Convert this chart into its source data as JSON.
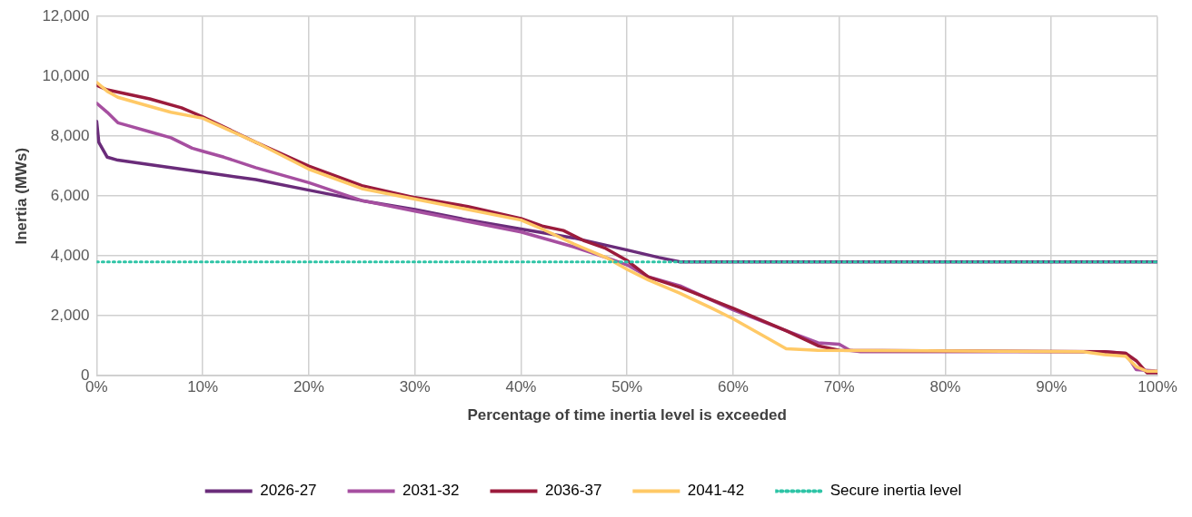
{
  "chart_data": {
    "type": "line",
    "xlabel": "Percentage of time inertia level is exceeded",
    "ylabel": "Inertia (MWs)",
    "xlim": [
      0,
      100
    ],
    "xticks": [
      {
        "value": 0,
        "label": "0%"
      },
      {
        "value": 10,
        "label": "10%"
      },
      {
        "value": 20,
        "label": "20%"
      },
      {
        "value": 30,
        "label": "30%"
      },
      {
        "value": 40,
        "label": "40%"
      },
      {
        "value": 50,
        "label": "50%"
      },
      {
        "value": 60,
        "label": "60%"
      },
      {
        "value": 70,
        "label": "70%"
      },
      {
        "value": 80,
        "label": "80%"
      },
      {
        "value": 90,
        "label": "90%"
      },
      {
        "value": 100,
        "label": "100%"
      }
    ],
    "ylim": [
      0,
      12000
    ],
    "yticks": [
      {
        "value": 0,
        "label": "0"
      },
      {
        "value": 2000,
        "label": "2,000"
      },
      {
        "value": 4000,
        "label": "4,000"
      },
      {
        "value": 6000,
        "label": "6,000"
      },
      {
        "value": 8000,
        "label": "8,000"
      },
      {
        "value": 10000,
        "label": "10,000"
      },
      {
        "value": 12000,
        "label": "12,000"
      }
    ],
    "grid": true,
    "legend": "bottom",
    "marker": "none",
    "series": [
      {
        "name": "2026-27",
        "color": "#6a2c7a",
        "x": [
          0,
          0.2,
          1,
          2,
          5,
          10,
          15,
          20,
          25,
          30,
          35,
          40,
          45,
          50,
          53,
          55,
          100
        ],
        "values": [
          8500,
          7800,
          7300,
          7200,
          7050,
          6800,
          6550,
          6200,
          5850,
          5550,
          5200,
          4900,
          4600,
          4200,
          3950,
          3800,
          3800
        ]
      },
      {
        "name": "2031-32",
        "color": "#a64fa0",
        "x": [
          0,
          1,
          2,
          3,
          5,
          7,
          9,
          10,
          12,
          15,
          20,
          25,
          30,
          35,
          40,
          45,
          48,
          50,
          52,
          55,
          60,
          65,
          68,
          70,
          71,
          72,
          95,
          97,
          98,
          100
        ],
        "values": [
          9100,
          8800,
          8450,
          8350,
          8150,
          7950,
          7600,
          7500,
          7300,
          6950,
          6450,
          5850,
          5500,
          5150,
          4800,
          4300,
          3950,
          3700,
          3300,
          3000,
          2200,
          1500,
          1100,
          1050,
          850,
          800,
          800,
          750,
          200,
          150
        ]
      },
      {
        "name": "2036-37",
        "color": "#9b1b3c",
        "x": [
          0,
          1,
          3,
          5,
          8,
          10,
          15,
          20,
          25,
          30,
          35,
          40,
          42,
          44,
          46,
          48,
          50,
          52,
          55,
          60,
          65,
          68,
          70,
          95,
          97,
          98,
          99,
          100
        ],
        "values": [
          9700,
          9550,
          9400,
          9250,
          8950,
          8650,
          7800,
          7000,
          6350,
          5950,
          5650,
          5250,
          5000,
          4850,
          4500,
          4250,
          3850,
          3300,
          2950,
          2250,
          1500,
          1000,
          850,
          800,
          750,
          500,
          100,
          100
        ]
      },
      {
        "name": "2041-42",
        "color": "#ffc966",
        "x": [
          0,
          1,
          2,
          5,
          7,
          10,
          15,
          20,
          25,
          30,
          35,
          40,
          42,
          45,
          48,
          50,
          52,
          55,
          58,
          60,
          63,
          65,
          68,
          93,
          95,
          97,
          98,
          99,
          100
        ],
        "values": [
          9800,
          9500,
          9300,
          9000,
          8800,
          8600,
          7800,
          6900,
          6250,
          5900,
          5550,
          5200,
          4900,
          4400,
          3950,
          3550,
          3200,
          2750,
          2250,
          1900,
          1300,
          900,
          850,
          800,
          700,
          650,
          300,
          150,
          150
        ]
      },
      {
        "name": "Secure inertia level",
        "color": "#2ec4a6",
        "line_style": "dotted",
        "x": [
          0,
          100
        ],
        "values": [
          3800,
          3800
        ]
      }
    ]
  }
}
